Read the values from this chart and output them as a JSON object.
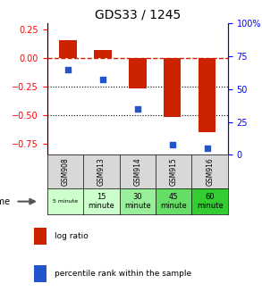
{
  "title": "GDS33 / 1245",
  "samples": [
    "GSM908",
    "GSM913",
    "GSM914",
    "GSM915",
    "GSM916"
  ],
  "time_line1": [
    "5 minute",
    "15",
    "30",
    "45",
    "60"
  ],
  "time_line2": [
    "",
    "minute",
    "minute",
    "minute",
    "minute"
  ],
  "time_colors": [
    "#ccffcc",
    "#ccffcc",
    "#99ee99",
    "#66dd66",
    "#33cc33"
  ],
  "log_ratio": [
    0.15,
    0.07,
    -0.27,
    -0.52,
    -0.65
  ],
  "percentile": [
    65,
    57,
    35,
    8,
    5
  ],
  "bar_color": "#cc2200",
  "dot_color": "#2255cc",
  "ylim_left": [
    -0.85,
    0.3
  ],
  "ylim_right": [
    0,
    100
  ],
  "yticks_left": [
    0.25,
    0,
    -0.25,
    -0.5,
    -0.75
  ],
  "yticks_right": [
    100,
    75,
    50,
    25,
    0
  ],
  "hline_color": "#cc2200"
}
